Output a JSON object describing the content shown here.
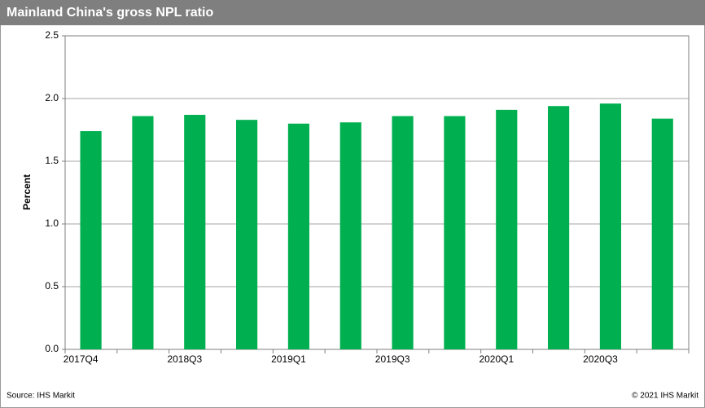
{
  "chart_data": {
    "type": "bar",
    "title": "Mainland China's gross NPL ratio",
    "y_label": "Percent",
    "categories": [
      "2017Q4",
      null,
      "2018Q3",
      null,
      "2019Q1",
      null,
      "2019Q3",
      null,
      "2020Q1",
      null,
      "2020Q3",
      null
    ],
    "values": [
      1.74,
      1.86,
      1.87,
      1.83,
      1.8,
      1.81,
      1.86,
      1.86,
      1.91,
      1.94,
      1.96,
      1.84
    ],
    "color": "#00b050",
    "ylim": [
      0,
      2.5
    ],
    "yticks": [
      {
        "value": 0,
        "label": "0.0"
      },
      {
        "value": 0.5,
        "label": "0.5"
      },
      {
        "value": 1,
        "label": "1.0"
      },
      {
        "value": 1.5,
        "label": "1.5"
      },
      {
        "value": 2,
        "label": "2.0"
      },
      {
        "value": 2.5,
        "label": "2.5"
      }
    ],
    "grid": true,
    "source": "Source: IHS Markit",
    "copyright": "© 2021 IHS Markit"
  }
}
